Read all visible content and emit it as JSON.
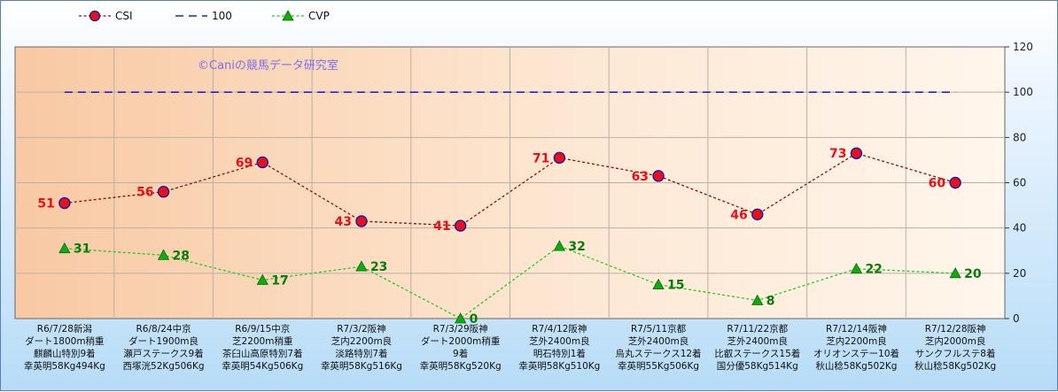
{
  "chart_data": {
    "type": "line",
    "watermark": "©Caniの競馬データ研究室",
    "ylim": [
      0,
      120
    ],
    "yticks": [
      0,
      20,
      40,
      60,
      80,
      100,
      120
    ],
    "categories": [
      [
        "R6/7/28新潟",
        "ダート1800m稍重",
        "麒麟山特別9着",
        "幸英明58Kg494Kg"
      ],
      [
        "R6/8/24中京",
        "ダート1900m良",
        "瀬戸ステークス9着",
        "西塚洸52Kg506Kg"
      ],
      [
        "R6/9/15中京",
        "芝2200m稍重",
        "茶臼山高原特別7着",
        "幸英明54Kg506Kg"
      ],
      [
        "R7/3/2阪神",
        "芝内2200m良",
        "淡路特別7着",
        "幸英明58Kg516Kg"
      ],
      [
        "R7/3/29阪神",
        "ダート2000m稍重",
        "9着",
        "幸英明58Kg520Kg"
      ],
      [
        "R7/4/12阪神",
        "芝外2400m良",
        "明石特別1着",
        "幸英明58Kg510Kg"
      ],
      [
        "R7/5/11京都",
        "芝外2400m良",
        "烏丸ステークス12着",
        "幸英明55Kg506Kg"
      ],
      [
        "R7/11/22京都",
        "芝外2400m良",
        "比叡ステークス15着",
        "国分優58Kg514Kg"
      ],
      [
        "R7/12/14阪神",
        "芝内2200m良",
        "オリオンステー10着",
        "秋山稔58Kg502Kg"
      ],
      [
        "R7/12/28阪神",
        "芝内2000m良",
        "サンクフルステ8着",
        "秋山稔58Kg502Kg"
      ]
    ],
    "series": [
      {
        "name": "CSI",
        "values": [
          51,
          56,
          69,
          43,
          41,
          71,
          63,
          46,
          73,
          60
        ],
        "color": "#8b1010",
        "marker_fill": "#e8101a",
        "marker_stroke": "#1a1aa0",
        "label_color": "#e8101a"
      },
      {
        "name": "100",
        "values": [
          100,
          100,
          100,
          100,
          100,
          100,
          100,
          100,
          100,
          100
        ],
        "color": "#2222cc"
      },
      {
        "name": "CVP",
        "values": [
          31,
          28,
          17,
          23,
          0,
          32,
          15,
          8,
          22,
          20
        ],
        "color": "#22cc22",
        "marker_fill": "#11aa11",
        "label_color": "#0a7a0a"
      }
    ],
    "grid": true,
    "legend": "top-left"
  }
}
